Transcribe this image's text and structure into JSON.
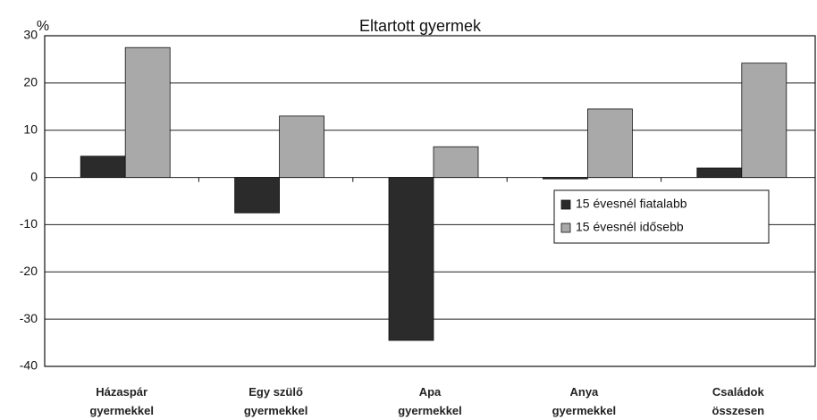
{
  "chart_data": {
    "type": "bar",
    "title": "Eltartott gyermek",
    "y_label": "%",
    "categories": [
      "Házaspár\ngyermekkel",
      "Egy szülő\ngyermekkel",
      "Apa\ngyermekkel",
      "Anya\ngyermekkel",
      "Családok\nösszesen"
    ],
    "series": [
      {
        "name": "15 évesnél fiatalabb",
        "color": "#2b2b2b",
        "values": [
          4.5,
          -7.5,
          -34.5,
          -0.3,
          2
        ]
      },
      {
        "name": "15 évesnél idősebb",
        "color": "#a9a9a9",
        "values": [
          27.5,
          13,
          6.5,
          14.5,
          24.2
        ]
      }
    ],
    "ylim": [
      -40,
      30
    ],
    "yticks": [
      -40,
      -30,
      -20,
      -10,
      0,
      10,
      20,
      30
    ],
    "grid": true,
    "legend": "right"
  }
}
